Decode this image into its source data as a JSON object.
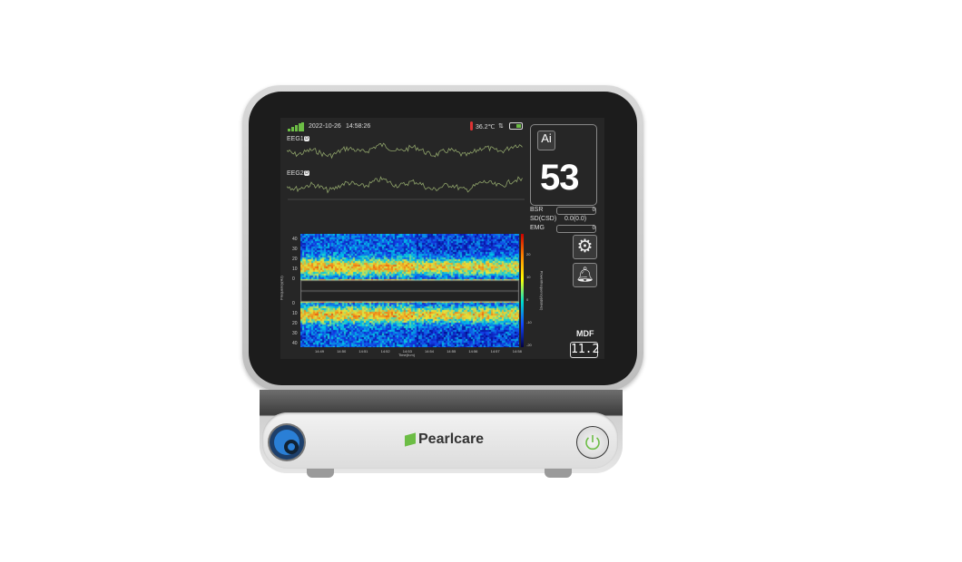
{
  "status": {
    "date": "2022-10-26",
    "time": "14:58:26",
    "temperature": "36.2℃",
    "signal_icon": "signal-bars-icon",
    "battery_icon": "battery-icon"
  },
  "eeg": {
    "channel1": "EEG1",
    "channel2": "EEG2",
    "channel1_badge": "D",
    "channel2_badge": "D",
    "wave_color": "#8fa36a"
  },
  "index": {
    "ai_label": "Ai",
    "value": "53"
  },
  "params": [
    {
      "label": "BSR",
      "value": "0"
    },
    {
      "label": "SD(CSD)",
      "value": "0.0(0.0)"
    },
    {
      "label": "EMG",
      "value": "0"
    }
  ],
  "mdf": {
    "label": "MDF",
    "value": "11.2"
  },
  "spectrogram": {
    "freq_ticks": [
      "40",
      "30",
      "20",
      "10",
      "0"
    ],
    "time_ticks": [
      "14:49",
      "14:50",
      "14:51",
      "14:52",
      "14:53",
      "14:54",
      "14:55",
      "14:56",
      "14:57",
      "14:58"
    ],
    "ylabel": "Frequency(Hz)",
    "xlabel": "Time(h:m)",
    "colorbar_label": "Power/frequency(dB/Hz)",
    "colorbar_ticks": [
      "20",
      "10",
      "0",
      "-10",
      "-20"
    ]
  },
  "device": {
    "brand": "Pearlcare",
    "accent": "#6cbd45",
    "port_color": "#2a7fd6"
  }
}
